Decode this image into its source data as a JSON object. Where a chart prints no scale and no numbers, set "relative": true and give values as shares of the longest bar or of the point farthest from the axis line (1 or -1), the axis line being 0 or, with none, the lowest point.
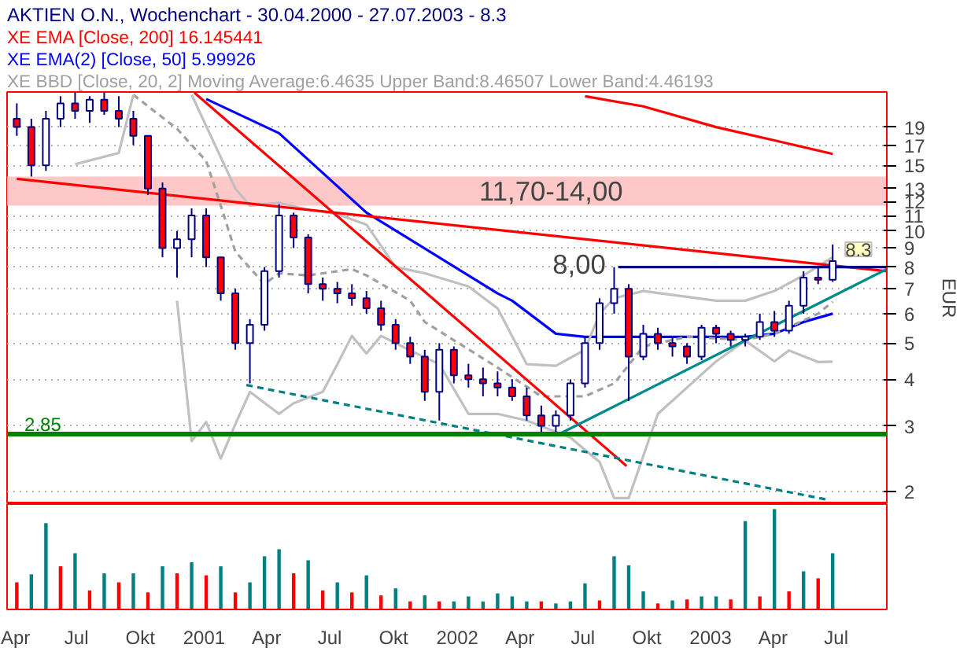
{
  "chart_data": [
    {
      "type": "candlestick",
      "title": "AKTIEN O.N., Wochenchart - 30.04.2000 - 27.07.2003 - 8.3",
      "ylabel": "EUR",
      "x": [
        "2000-04-30",
        "2000-05-21",
        "2000-06-11",
        "2000-07-02",
        "2000-07-23",
        "2000-08-13",
        "2000-09-03",
        "2000-09-24",
        "2000-10-15",
        "2000-11-05",
        "2000-11-26",
        "2000-12-17",
        "2001-01-07",
        "2001-01-28",
        "2001-02-18",
        "2001-03-11",
        "2001-04-01",
        "2001-04-22",
        "2001-05-13",
        "2001-06-03",
        "2001-06-24",
        "2001-07-15",
        "2001-08-05",
        "2001-08-26",
        "2001-09-16",
        "2001-10-07",
        "2001-10-28",
        "2001-11-18",
        "2001-12-09",
        "2001-12-30",
        "2002-01-20",
        "2002-02-10",
        "2002-03-03",
        "2002-03-24",
        "2002-04-14",
        "2002-05-05",
        "2002-05-26",
        "2002-06-16",
        "2002-07-07",
        "2002-07-28",
        "2002-08-18",
        "2002-09-08",
        "2002-09-29",
        "2002-10-20",
        "2002-11-10",
        "2002-12-01",
        "2002-12-22",
        "2003-01-12",
        "2003-02-02",
        "2003-02-23",
        "2003-03-16",
        "2003-04-06",
        "2003-04-27",
        "2003-05-18",
        "2003-06-08",
        "2003-06-29",
        "2003-07-20"
      ],
      "ohlc": [
        [
          20,
          22,
          18,
          19
        ],
        [
          19,
          20,
          14,
          15
        ],
        [
          15,
          21,
          14.5,
          20
        ],
        [
          20,
          23,
          19,
          22
        ],
        [
          22,
          23.5,
          20,
          21
        ],
        [
          21,
          23,
          19.5,
          22.5
        ],
        [
          22.5,
          23.5,
          20.5,
          21
        ],
        [
          21,
          23,
          19,
          20
        ],
        [
          20,
          21,
          17,
          18
        ],
        [
          18,
          18,
          12.5,
          13
        ],
        [
          13,
          13.5,
          8.5,
          9
        ],
        [
          9,
          10,
          7.5,
          9.5
        ],
        [
          9.5,
          11.5,
          8.5,
          11
        ],
        [
          11,
          11.5,
          8,
          8.5
        ],
        [
          8.5,
          8.5,
          6.5,
          6.8
        ],
        [
          6.8,
          7,
          4.8,
          5
        ],
        [
          5,
          5.8,
          3.9,
          5.6
        ],
        [
          5.6,
          8,
          5.4,
          7.8
        ],
        [
          7.8,
          11.8,
          7.5,
          11
        ],
        [
          11,
          11.2,
          9,
          9.6
        ],
        [
          9.6,
          9.8,
          6.8,
          7.2
        ],
        [
          7.2,
          7.5,
          6.5,
          7
        ],
        [
          7,
          7.3,
          6.4,
          6.8
        ],
        [
          6.8,
          7.2,
          6.3,
          6.6
        ],
        [
          6.6,
          6.9,
          6,
          6.2
        ],
        [
          6.2,
          6.5,
          5.4,
          5.6
        ],
        [
          5.6,
          5.8,
          4.8,
          5
        ],
        [
          5,
          5.2,
          4.4,
          4.6
        ],
        [
          4.6,
          4.8,
          3.5,
          3.7
        ],
        [
          3.7,
          5,
          3.1,
          4.8
        ],
        [
          4.8,
          4.9,
          3.9,
          4.1
        ],
        [
          4.1,
          4.4,
          3.8,
          4
        ],
        [
          4,
          4.3,
          3.6,
          3.9
        ],
        [
          3.9,
          4.2,
          3.6,
          3.8
        ],
        [
          3.8,
          4,
          3.5,
          3.6
        ],
        [
          3.6,
          3.8,
          3.1,
          3.2
        ],
        [
          3.2,
          3.4,
          2.85,
          3
        ],
        [
          3,
          3.3,
          2.85,
          3.2
        ],
        [
          3.2,
          4,
          3.1,
          3.9
        ],
        [
          3.9,
          5.2,
          3.8,
          5
        ],
        [
          5,
          6.6,
          4.8,
          6.4
        ],
        [
          6.4,
          8,
          6,
          7
        ],
        [
          7,
          7.2,
          3.5,
          4.6
        ],
        [
          4.6,
          5.6,
          4.5,
          5.3
        ],
        [
          5.3,
          5.5,
          4.8,
          5
        ],
        [
          5,
          5.2,
          4.6,
          4.9
        ],
        [
          4.9,
          5,
          4.4,
          4.6
        ],
        [
          4.6,
          5.6,
          4.5,
          5.5
        ],
        [
          5.5,
          5.6,
          5,
          5.3
        ],
        [
          5.3,
          5.4,
          4.9,
          5.1
        ],
        [
          5.1,
          5.3,
          4.9,
          5.2
        ],
        [
          5.2,
          6,
          5.1,
          5.7
        ],
        [
          5.7,
          6.1,
          5.2,
          5.4
        ],
        [
          5.4,
          6.5,
          5.3,
          6.3
        ],
        [
          6.3,
          7.8,
          6,
          7.5
        ],
        [
          7.5,
          8,
          7.2,
          7.4
        ],
        [
          7.4,
          9.2,
          7.3,
          8.3
        ]
      ],
      "series": [
        {
          "type": "line",
          "name": "XE EMA [Close, 200] 16.145441",
          "color": "#ff0000",
          "x": [
            "2002-07-28",
            "2002-10-20",
            "2003-02-02",
            "2003-04-27",
            "2003-07-20"
          ],
          "values": [
            23.0,
            21.6,
            19.0,
            17.5,
            16.1
          ]
        },
        {
          "type": "line",
          "name": "XE EMA(2) [Close, 50] 5.99926",
          "color": "#0000ff",
          "x": [
            "2001-01-28",
            "2001-05-13",
            "2001-09-16",
            "2002-03-24",
            "2002-04-14",
            "2002-06-16",
            "2002-07-28",
            "2002-10-20",
            "2002-12-22",
            "2003-03-16",
            "2003-04-27",
            "2003-06-08",
            "2003-07-20"
          ],
          "values": [
            22.6,
            18.3,
            11.2,
            6.8,
            6.5,
            5.3,
            5.2,
            5.2,
            5.2,
            5.2,
            5.3,
            5.7,
            6.0
          ]
        },
        {
          "type": "line",
          "name": "XE BBD [Close, 20, 2] Moving Average:6.4635 Upper Band:8.46507 Lower Band:4.46193",
          "color": "#a0a0a0",
          "line_style": "dashed",
          "x": [
            "2000-10-15",
            "2000-12-17",
            "2001-01-28",
            "2001-02-18",
            "2001-03-11",
            "2001-04-22",
            "2001-05-13",
            "2001-06-24",
            "2001-08-26",
            "2001-09-16",
            "2001-11-18",
            "2001-12-09",
            "2002-03-24",
            "2002-05-26",
            "2002-07-28",
            "2002-09-08",
            "2002-10-20",
            "2002-12-22",
            "2003-03-16",
            "2003-04-27",
            "2003-06-29",
            "2003-07-20"
          ],
          "values": [
            23.2,
            18.8,
            15.4,
            11.7,
            8.8,
            7.2,
            7.7,
            7.6,
            7.9,
            7.6,
            6.5,
            5.7,
            4.3,
            3.6,
            3.6,
            3.9,
            4.9,
            5.2,
            5.1,
            5.3,
            6.0,
            6.46
          ]
        },
        {
          "type": "line",
          "color": "#c0c0c0",
          "x": [
            "2000-07-23",
            "2000-09-24",
            "2000-10-15",
            "2000-11-05",
            "2001-01-07",
            "2001-03-11",
            "2001-04-01",
            "2001-05-13",
            "2001-06-24",
            "2001-08-05",
            "2001-09-16",
            "2001-10-28",
            "2001-12-09",
            "2002-02-10",
            "2002-03-24",
            "2002-05-05",
            "2002-06-16",
            "2002-07-28",
            "2002-08-18",
            "2002-09-08",
            "2002-10-20",
            "2003-02-02",
            "2003-03-16",
            "2003-04-27",
            "2003-06-08",
            "2003-07-20"
          ],
          "values": [
            15.1,
            16.2,
            23.2,
            null,
            23.2,
            13.0,
            11.7,
            11.9,
            11.4,
            11.1,
            10.4,
            8.0,
            7.7,
            7.1,
            6.2,
            4.39,
            4.35,
            4.8,
            6.0,
            6.6,
            6.9,
            6.5,
            6.5,
            6.9,
            7.6,
            8.5
          ]
        },
        {
          "type": "line",
          "color": "#c0c0c0",
          "x": [
            "2000-12-17",
            "2001-01-07",
            "2001-01-28",
            "2001-02-18",
            "2001-03-11",
            "2001-04-01",
            "2001-05-13",
            "2001-06-03",
            "2001-07-15",
            "2001-08-05",
            "2001-08-26",
            "2001-09-16",
            "2001-10-07",
            "2001-11-18",
            "2001-12-30",
            "2002-02-10",
            "2002-03-24",
            "2002-05-05",
            "2002-07-07",
            "2002-08-18",
            "2002-09-08",
            "2002-09-29",
            "2002-11-10",
            "2003-02-02",
            "2003-03-16",
            "2003-04-27",
            "2003-05-18",
            "2003-06-29",
            "2003-07-20"
          ],
          "values": [
            6.5,
            2.73,
            3.07,
            2.45,
            3.03,
            3.7,
            3.23,
            3.45,
            3.7,
            4.39,
            5.23,
            4.69,
            5.23,
            4.78,
            4.39,
            3.23,
            3.23,
            3.1,
            2.79,
            2.4,
            1.92,
            1.92,
            3.23,
            4.47,
            5.08,
            4.47,
            4.78,
            4.45,
            4.46
          ]
        },
        {
          "type": "line",
          "color": "#ff0000",
          "x": [
            "2000-04-30",
            "2003-10-06"
          ],
          "values": [
            13.8,
            7.8
          ]
        },
        {
          "type": "line",
          "color": "#ff0000",
          "x": [
            "2001-01-11",
            "2002-09-26"
          ],
          "values": [
            23.5,
            2.34
          ]
        },
        {
          "type": "line",
          "color": "#008080",
          "line_style": "dashed",
          "x": [
            "2001-03-27",
            "2003-07-13"
          ],
          "values": [
            3.86,
            1.9
          ]
        },
        {
          "type": "line",
          "color": "#008b8b",
          "x": [
            "2002-06-19",
            "2003-10-06"
          ],
          "values": [
            2.84,
            7.9
          ]
        },
        {
          "type": "line",
          "color": "#000080",
          "x": [
            "2002-09-14",
            "2003-10-06"
          ],
          "values": [
            8.0,
            8.0
          ]
        }
      ],
      "xlim": [
        "2000-04-16",
        "2003-10-06"
      ],
      "ylim": [
        1.85,
        23.6
      ],
      "log": true,
      "yticks": [
        2,
        3,
        4,
        5,
        6,
        7,
        8,
        9,
        10,
        11,
        12,
        13,
        15,
        17,
        19
      ],
      "grid": "y",
      "legend": "top",
      "tick_labels": "y",
      "ref_lines": [
        {
          "axis": "y",
          "value": 2.85,
          "label": "2.85",
          "color": "#008000"
        }
      ],
      "bands": [
        {
          "axis": "y",
          "from": 11.7,
          "to": 14.0,
          "label": "11,70-14,00",
          "color": "#ffc8c8"
        }
      ],
      "annotations": [
        {
          "text": "8,00",
          "x": "2002-09-14",
          "y": 8.0
        },
        {
          "text": "8.3",
          "x": "2003-07-20",
          "y": 8.3
        }
      ]
    },
    {
      "type": "bar",
      "relative": true,
      "x": [
        "2000-04-30",
        "2000-05-21",
        "2000-06-11",
        "2000-07-02",
        "2000-07-23",
        "2000-08-13",
        "2000-09-03",
        "2000-09-24",
        "2000-10-15",
        "2000-11-05",
        "2000-11-26",
        "2000-12-17",
        "2001-01-07",
        "2001-01-28",
        "2001-02-18",
        "2001-03-11",
        "2001-04-01",
        "2001-04-22",
        "2001-05-13",
        "2001-06-03",
        "2001-06-24",
        "2001-07-15",
        "2001-08-05",
        "2001-08-26",
        "2001-09-16",
        "2001-10-07",
        "2001-10-28",
        "2001-11-18",
        "2001-12-09",
        "2001-12-30",
        "2002-01-20",
        "2002-02-10",
        "2002-03-03",
        "2002-03-24",
        "2002-04-14",
        "2002-05-05",
        "2002-05-26",
        "2002-06-16",
        "2002-07-07",
        "2002-07-28",
        "2002-08-18",
        "2002-09-08",
        "2002-09-29",
        "2002-10-20",
        "2002-11-10",
        "2002-12-01",
        "2002-12-22",
        "2003-01-12",
        "2003-02-02",
        "2003-02-23",
        "2003-03-16",
        "2003-04-06",
        "2003-04-27",
        "2003-05-18",
        "2003-06-08",
        "2003-06-29",
        "2003-07-20"
      ],
      "values": [
        0.27,
        0.35,
        0.86,
        0.43,
        0.56,
        0.19,
        0.36,
        0.27,
        0.36,
        0.17,
        0.43,
        0.36,
        0.47,
        0.34,
        0.43,
        0.17,
        0.27,
        0.53,
        0.6,
        0.36,
        0.49,
        0.19,
        0.27,
        0.17,
        0.34,
        0.14,
        0.21,
        0.08,
        0.14,
        0.08,
        0.08,
        0.13,
        0.08,
        0.16,
        0.13,
        0.08,
        0.08,
        0.06,
        0.08,
        0.26,
        0.09,
        0.53,
        0.44,
        0.18,
        0.06,
        0.09,
        0.1,
        0.13,
        0.13,
        0.1,
        0.88,
        0.13,
        1.0,
        0.18,
        0.38,
        0.31,
        0.56
      ],
      "colors": [
        "#ff0000",
        "#008080",
        "#008080",
        "#ff0000",
        "#008080",
        "#ff0000",
        "#008080",
        "#ff0000",
        "#008080",
        "#ff0000",
        "#008080",
        "#ff0000",
        "#008080",
        "#ff0000",
        "#008080",
        "#ff0000",
        "#008080",
        "#008080",
        "#008080",
        "#ff0000",
        "#008080",
        "#ff0000",
        "#008080",
        "#ff0000",
        "#008080",
        "#ff0000",
        "#008080",
        "#ff0000",
        "#008080",
        "#ff0000",
        "#008080",
        "#008080",
        "#008080",
        "#008080",
        "#008080",
        "#008080",
        "#ff0000",
        "#008080",
        "#008080",
        "#008080",
        "#ff0000",
        "#008080",
        "#008080",
        "#008080",
        "#ff0000",
        "#008080",
        "#ff0000",
        "#008080",
        "#008080",
        "#ff0000",
        "#008080",
        "#ff0000",
        "#008080",
        "#ff0000",
        "#008080",
        "#ff0000",
        "#008080"
      ],
      "xlim": [
        "2000-04-16",
        "2003-10-06"
      ],
      "tick_labels": "x",
      "xticks": [
        {
          "value": "2000-04-22",
          "label": "Apr"
        },
        {
          "value": "2000-07-25",
          "label": "Jul"
        },
        {
          "value": "2000-10-25",
          "label": "Okt"
        },
        {
          "value": "2001-01-25",
          "label": "2001"
        },
        {
          "value": "2001-04-25",
          "label": "Apr"
        },
        {
          "value": "2001-07-25",
          "label": "Jul"
        },
        {
          "value": "2001-10-25",
          "label": "Okt"
        },
        {
          "value": "2002-01-25",
          "label": "2002"
        },
        {
          "value": "2002-04-25",
          "label": "Apr"
        },
        {
          "value": "2002-07-25",
          "label": "Jul"
        },
        {
          "value": "2002-10-25",
          "label": "Okt"
        },
        {
          "value": "2003-01-25",
          "label": "2003"
        },
        {
          "value": "2003-04-25",
          "label": "Apr"
        },
        {
          "value": "2003-07-25",
          "label": "Jul"
        }
      ]
    }
  ]
}
